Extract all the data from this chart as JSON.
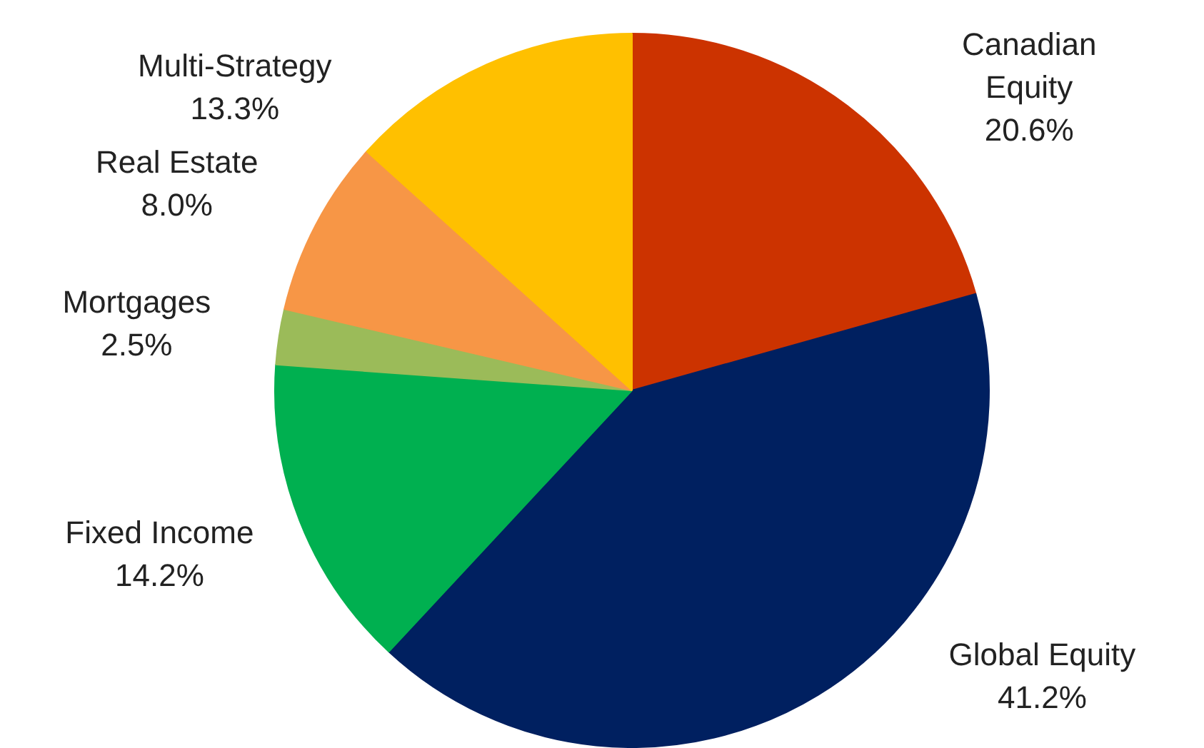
{
  "chart_data": {
    "type": "pie",
    "categories": [
      "Canadian\nEquity",
      "Global Equity",
      "Fixed Income",
      "Mortgages",
      "Real Estate",
      "Multi-Strategy"
    ],
    "values": [
      20.6,
      41.2,
      14.2,
      2.5,
      8.0,
      13.3
    ],
    "value_labels": [
      "20.6%",
      "41.2%",
      "14.2%",
      "2.5%",
      "8.0%",
      "13.3%"
    ],
    "colors": [
      "#cc3300",
      "#002060",
      "#00b050",
      "#9bbb59",
      "#f79646",
      "#ffc000"
    ]
  }
}
